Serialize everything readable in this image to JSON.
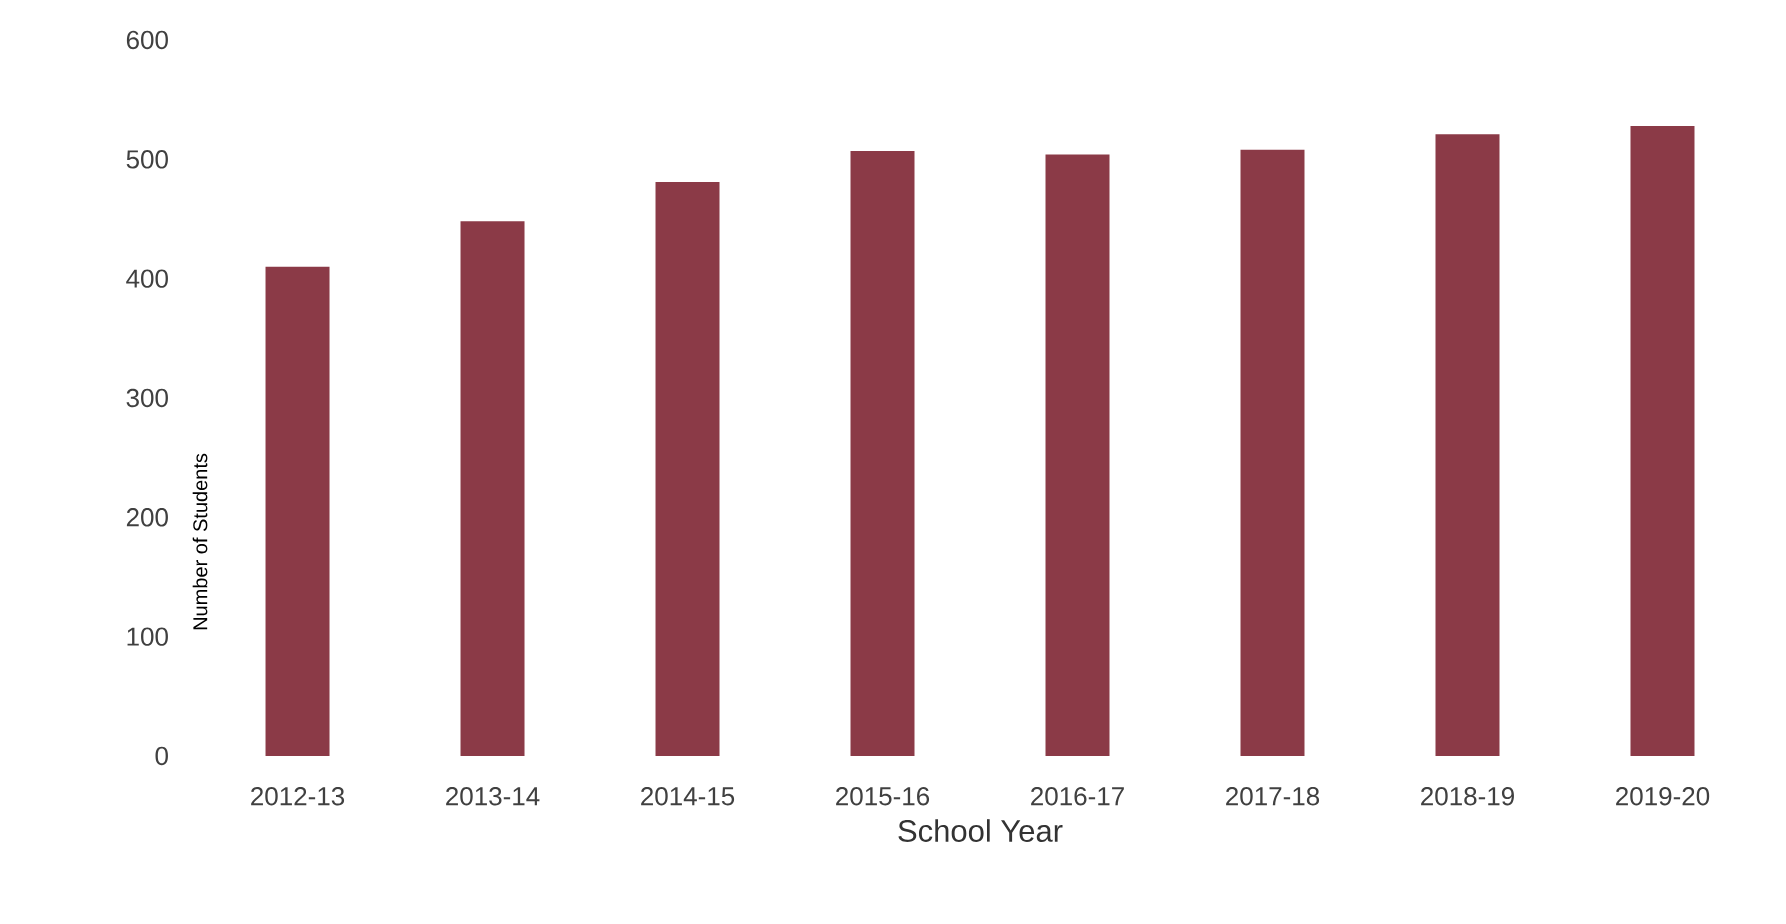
{
  "chart_data": {
    "type": "bar",
    "xlabel": "School Year",
    "ylabel": "Number of Students",
    "categories": [
      "2012-13",
      "2013-14",
      "2014-15",
      "2015-16",
      "2016-17",
      "2017-18",
      "2018-19",
      "2019-20"
    ],
    "values": [
      410,
      448,
      481,
      507,
      504,
      508,
      521,
      528
    ],
    "color": "#8b3a47",
    "ylim": [
      0,
      600
    ],
    "yticks": [
      0,
      100,
      200,
      300,
      400,
      500,
      600
    ],
    "grid": false
  }
}
